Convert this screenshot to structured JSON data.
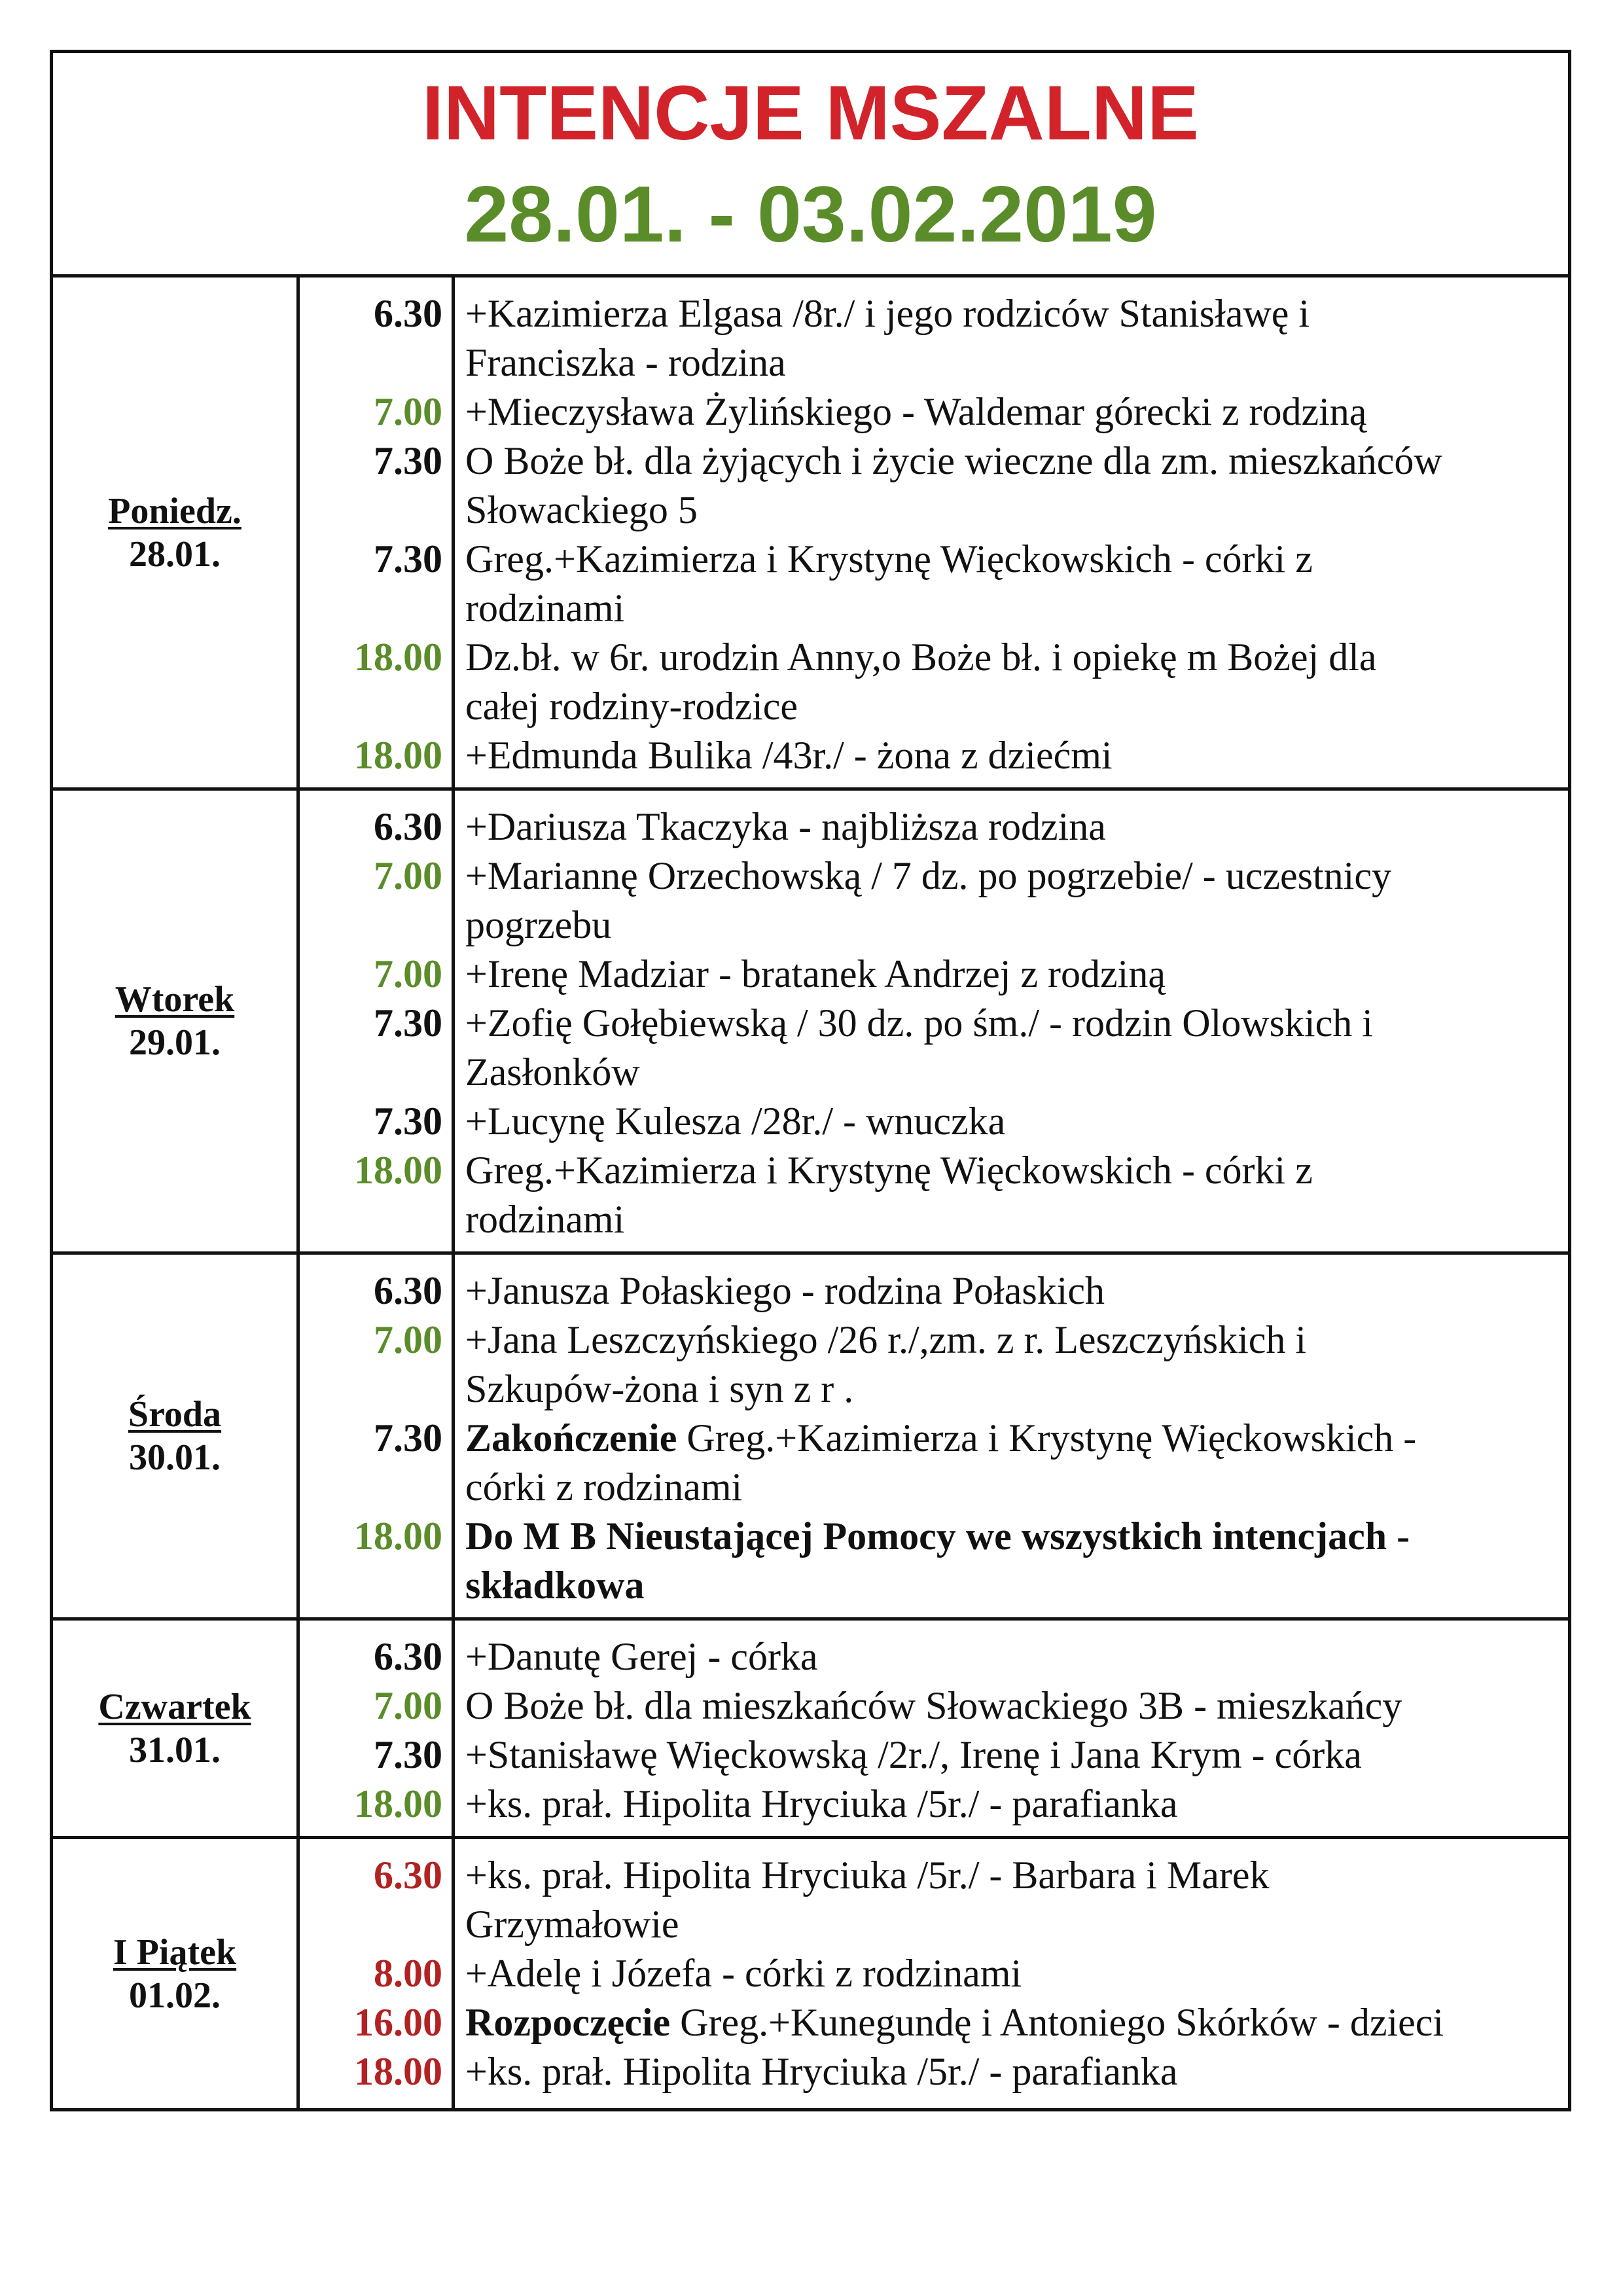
{
  "header": {
    "title": "INTENCJE MSZALNE",
    "subtitle": "28.01. - 03.02.2019"
  },
  "colors": {
    "title": "#d2232a",
    "subtitle": "#5b8c2a",
    "black": "#111111",
    "green": "#5b8c2a",
    "red": "#b22222"
  },
  "days": [
    {
      "name": "Poniedz.",
      "date": "28.01.",
      "entries": [
        {
          "time": "6.30",
          "color": "black",
          "lines": [
            "+Kazimierza Elgasa /8r./ i jego rodziców Stanisławę i",
            "Franciszka - rodzina"
          ]
        },
        {
          "time": "7.00",
          "color": "green",
          "lines": [
            "+Mieczysława Żylińskiego - Waldemar górecki z rodziną"
          ]
        },
        {
          "time": "7.30",
          "color": "black",
          "lines": [
            "O Boże bł. dla żyjących i życie wieczne dla zm. mieszkańców",
            "Słowackiego 5"
          ]
        },
        {
          "time": "7.30",
          "color": "black",
          "lines": [
            "Greg.+Kazimierza i Krystynę Więckowskich - córki z",
            "rodzinami"
          ]
        },
        {
          "time": "18.00",
          "color": "green",
          "lines": [
            "Dz.bł. w 6r. urodzin Anny,o Boże bł. i opiekę m Bożej dla",
            "całej rodziny-rodzice"
          ]
        },
        {
          "time": "18.00",
          "color": "green",
          "lines": [
            "+Edmunda Bulika /43r./ - żona z dziećmi"
          ]
        }
      ]
    },
    {
      "name": "Wtorek",
      "date": "29.01.",
      "entries": [
        {
          "time": "6.30",
          "color": "black",
          "lines": [
            "+Dariusza Tkaczyka - najbliższa rodzina"
          ]
        },
        {
          "time": "7.00",
          "color": "green",
          "lines": [
            "+Mariannę Orzechowską / 7 dz. po pogrzebie/ - uczestnicy",
            "pogrzebu"
          ]
        },
        {
          "time": "7.00",
          "color": "green",
          "lines": [
            "+Irenę Madziar - bratanek Andrzej z rodziną"
          ]
        },
        {
          "time": "7.30",
          "color": "black",
          "lines": [
            "+Zofię Gołębiewską / 30 dz. po śm./ - rodzin Olowskich i",
            "Zasłonków"
          ]
        },
        {
          "time": "7.30",
          "color": "black",
          "lines": [
            "+Lucynę Kulesza /28r./ - wnuczka"
          ]
        },
        {
          "time": "18.00",
          "color": "green",
          "lines": [
            "Greg.+Kazimierza i Krystynę Więckowskich - córki z",
            "rodzinami"
          ]
        }
      ]
    },
    {
      "name": "Środa",
      "date": "30.01.",
      "entries": [
        {
          "time": "6.30",
          "color": "black",
          "lines": [
            "+Janusza Połaskiego - rodzina Połaskich"
          ]
        },
        {
          "time": "7.00",
          "color": "green",
          "lines": [
            "+Jana Leszczyńskiego /26 r./,zm. z r. Leszczyńskich i",
            "Szkupów-żona i syn z r ."
          ]
        },
        {
          "time": "7.30",
          "color": "black",
          "bold_prefix": "Zakończenie",
          "lines": [
            " Greg.+Kazimierza i Krystynę Więckowskich -",
            "córki z rodzinami"
          ]
        },
        {
          "time": "18.00",
          "color": "green",
          "bold": true,
          "lines": [
            "Do M B Nieustającej Pomocy we wszystkich intencjach -",
            "składkowa"
          ]
        }
      ]
    },
    {
      "name": "Czwartek",
      "date": "31.01.",
      "entries": [
        {
          "time": "6.30",
          "color": "black",
          "lines": [
            "+Danutę Gerej - córka"
          ]
        },
        {
          "time": "7.00",
          "color": "green",
          "lines": [
            "O Boże bł. dla mieszkańców Słowackiego 3B - mieszkańcy"
          ]
        },
        {
          "time": "7.30",
          "color": "black",
          "lines": [
            "+Stanisławę Więckowską /2r./, Irenę i Jana Krym - córka"
          ]
        },
        {
          "time": "18.00",
          "color": "green",
          "lines": [
            "+ks. prał. Hipolita Hryciuka /5r./ - parafianka"
          ]
        }
      ]
    },
    {
      "name": "I Piątek",
      "date": "01.02.",
      "entries": [
        {
          "time": "6.30",
          "color": "red",
          "lines": [
            "+ks. prał. Hipolita Hryciuka /5r./ - Barbara i Marek",
            "Grzymałowie"
          ]
        },
        {
          "time": "8.00",
          "color": "red",
          "lines": [
            "+Adelę i Józefa - córki z rodzinami"
          ]
        },
        {
          "time": "16.00",
          "color": "red",
          "bold_prefix": "Rozpoczęcie",
          "lines": [
            " Greg.+Kunegundę i Antoniego Skórków - dzieci"
          ]
        },
        {
          "time": "18.00",
          "color": "red",
          "lines": [
            "+ks. prał. Hipolita Hryciuka /5r./ - parafianka"
          ]
        }
      ]
    }
  ]
}
